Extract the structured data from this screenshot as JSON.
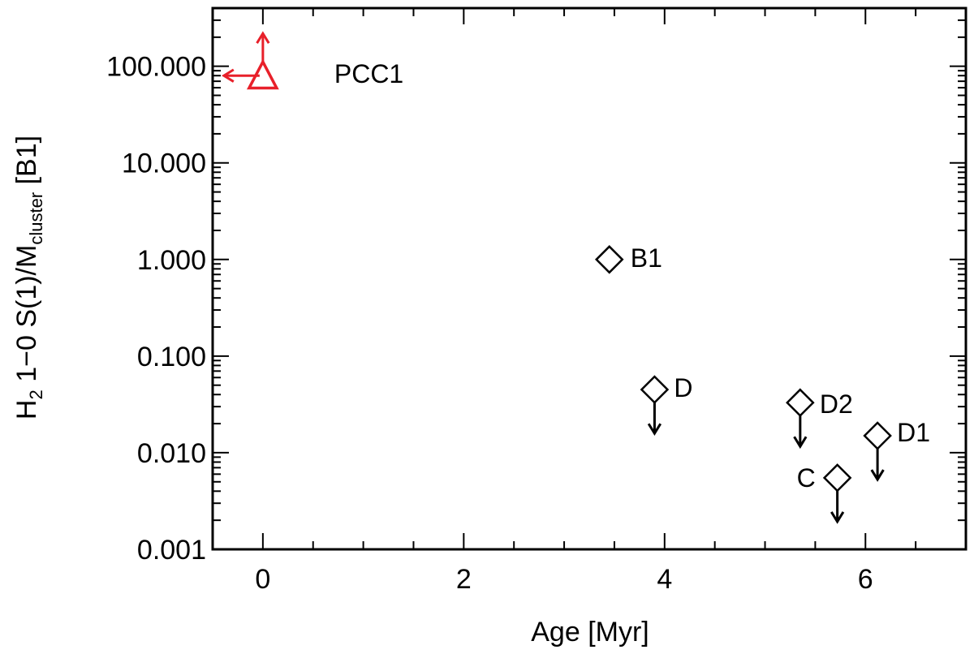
{
  "chart_data": {
    "type": "scatter",
    "title": "",
    "xlabel": "Age [Myr]",
    "ylabel": {
      "prefix": "H",
      "prefix_sub": "2",
      "main": " 1−0 S(1)/M",
      "main_sub": "cluster",
      "suffix": " [B1]"
    },
    "xlim": [
      -0.5,
      7.0
    ],
    "ylim": [
      0.001,
      400
    ],
    "yscale": "log",
    "grid": false,
    "x_ticks": [
      {
        "value": 0,
        "label": "0"
      },
      {
        "value": 2,
        "label": "2"
      },
      {
        "value": 4,
        "label": "4"
      },
      {
        "value": 6,
        "label": "6"
      }
    ],
    "y_ticks": [
      {
        "value": 0.001,
        "label": "0.001"
      },
      {
        "value": 0.01,
        "label": "0.010"
      },
      {
        "value": 0.1,
        "label": "0.100"
      },
      {
        "value": 1,
        "label": "1.000"
      },
      {
        "value": 10,
        "label": "10.000"
      },
      {
        "value": 100,
        "label": "100.000"
      }
    ],
    "colors": {
      "axes": "#000000",
      "highlight": "#e8202a"
    },
    "points": [
      {
        "label": "PCC1",
        "x": 0.0,
        "y": 80,
        "marker": "triangle",
        "color": "#e8202a",
        "upper_limit": false,
        "lower_limit": true,
        "x_upper_limit": true
      },
      {
        "label": "B1",
        "x": 3.45,
        "y": 1.0,
        "marker": "diamond",
        "color": "#000000",
        "upper_limit": false
      },
      {
        "label": "D",
        "x": 3.9,
        "y": 0.045,
        "marker": "diamond",
        "color": "#000000",
        "upper_limit": true
      },
      {
        "label": "D2",
        "x": 5.35,
        "y": 0.033,
        "marker": "diamond",
        "color": "#000000",
        "upper_limit": true
      },
      {
        "label": "D1",
        "x": 6.12,
        "y": 0.015,
        "marker": "diamond",
        "color": "#000000",
        "upper_limit": true
      },
      {
        "label": "C",
        "x": 5.72,
        "y": 0.0055,
        "marker": "diamond",
        "color": "#000000",
        "upper_limit": true
      }
    ]
  }
}
